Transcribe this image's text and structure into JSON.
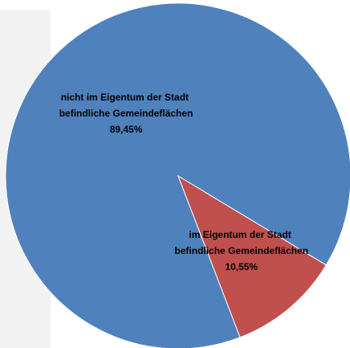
{
  "chart_data": {
    "type": "pie",
    "categories": [
      "nicht im Eigentum der Stadt befindliche Gemeindeflächen",
      "im Eigentum der Stadt befindliche Gemeindeflächen"
    ],
    "values": [
      89.45,
      10.55
    ],
    "value_labels": [
      "89,45%",
      "10,55%"
    ],
    "colors": [
      "#4f81bd",
      "#c0504d"
    ]
  }
}
